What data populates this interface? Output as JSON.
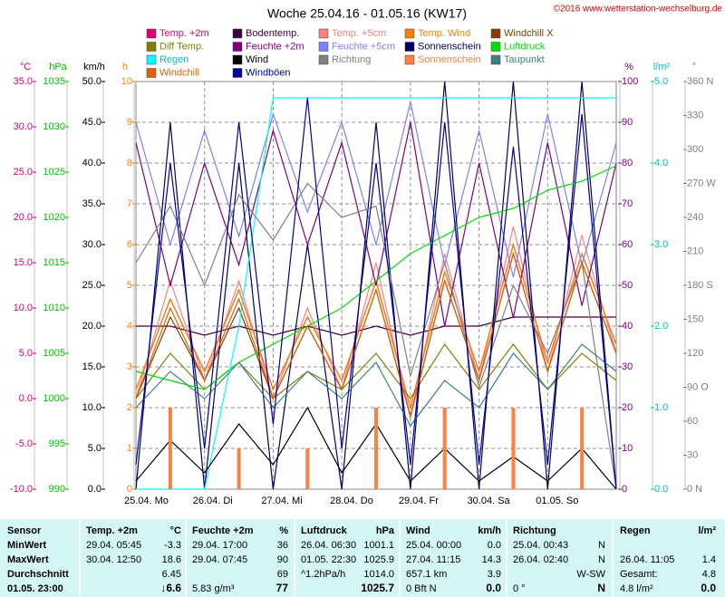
{
  "chart_data": {
    "type": "line",
    "title": "Woche 25.04.16 - 01.05.16 (KW17)",
    "copyright": "©2016 www.wetterstation-wechselburg.de",
    "grid": true,
    "xlim": [
      0,
      168
    ],
    "xticks": [
      {
        "value": 0,
        "label": "25.04.  Mo"
      },
      {
        "value": 24,
        "label": "26.04.  Di"
      },
      {
        "value": 48,
        "label": "27.04.  Mi"
      },
      {
        "value": 72,
        "label": "28.04.  Do"
      },
      {
        "value": 96,
        "label": "29.04.  Fr"
      },
      {
        "value": 120,
        "label": "30.04.  Sa"
      },
      {
        "value": 144,
        "label": "01.05.  So"
      }
    ],
    "x": [
      0,
      12,
      24,
      36,
      48,
      60,
      72,
      84,
      96,
      108,
      120,
      132,
      144,
      156,
      168
    ],
    "ylabel": "°C",
    "ycolor": "#e0006e",
    "ylim": [
      -10,
      35
    ],
    "yticks": [
      {
        "value": -10,
        "label": "-10.0"
      },
      {
        "value": -5,
        "label": "-5.0"
      },
      {
        "value": 0,
        "label": "0.0"
      },
      {
        "value": 5,
        "label": "5.0"
      },
      {
        "value": 10,
        "label": "10.0"
      },
      {
        "value": 15,
        "label": "15.0"
      },
      {
        "value": 20,
        "label": "20.0"
      },
      {
        "value": 25,
        "label": "25.0"
      },
      {
        "value": 30,
        "label": "30.0"
      },
      {
        "value": 35,
        "label": "35.0"
      }
    ],
    "y2label": "hPa",
    "y2color": "#00c000",
    "y2lim": [
      990,
      1035
    ],
    "y2ticks": [
      990,
      995,
      1000,
      1005,
      1010,
      1015,
      1020,
      1025,
      1030,
      1035
    ],
    "y3label": "km/h",
    "y3color": "#000000",
    "y3lim": [
      0,
      50
    ],
    "y3ticks": [
      {
        "value": 0,
        "label": "0.0"
      },
      {
        "value": 5,
        "label": "5.0"
      },
      {
        "value": 10,
        "label": "10.0"
      },
      {
        "value": 15,
        "label": "15.0"
      },
      {
        "value": 20,
        "label": "20.0"
      },
      {
        "value": 25,
        "label": "25.0"
      },
      {
        "value": 30,
        "label": "30.0"
      },
      {
        "value": 35,
        "label": "35.0"
      },
      {
        "value": 40,
        "label": "40.0"
      },
      {
        "value": 45,
        "label": "45.0"
      },
      {
        "value": 50,
        "label": "50.0"
      }
    ],
    "y4label": "h",
    "y4color": "#ff8000",
    "y4lim": [
      0,
      10
    ],
    "y4ticks": [
      0,
      1,
      2,
      3,
      4,
      5,
      6,
      7,
      8,
      9,
      10
    ],
    "y5label": "%",
    "y5color": "#800080",
    "y5lim": [
      0,
      100
    ],
    "y5ticks": [
      0,
      10,
      20,
      30,
      40,
      50,
      60,
      70,
      80,
      90,
      100
    ],
    "y6label": "l/m²",
    "y6color": "#00c0c0",
    "y6lim": [
      0,
      5
    ],
    "y6ticks": [
      {
        "value": 0,
        "label": "0.0"
      },
      {
        "value": 1,
        "label": "1.0"
      },
      {
        "value": 2,
        "label": "2.0"
      },
      {
        "value": 3,
        "label": "3.0"
      },
      {
        "value": 4,
        "label": "4.0"
      },
      {
        "value": 5,
        "label": "5.0"
      }
    ],
    "y7label": "°",
    "y7color": "#808080",
    "y7lim": [
      0,
      360
    ],
    "y7ticks": [
      {
        "value": 0,
        "label": "0 N"
      },
      30,
      60,
      {
        "value": 90,
        "label": "90 O"
      },
      120,
      150,
      {
        "value": 180,
        "label": "180 S"
      },
      210,
      240,
      {
        "value": 270,
        "label": "270 W"
      },
      300,
      330,
      {
        "value": 360,
        "label": "360 N"
      }
    ],
    "series": [
      {
        "name": "Temp. +2m",
        "color": "#e0006e",
        "axis": "y",
        "values": [
          1,
          11,
          3,
          12,
          1,
          9,
          2,
          13,
          -1,
          14,
          3,
          17,
          4,
          16,
          6
        ]
      },
      {
        "name": "Bodentemp.",
        "color": "#400040",
        "axis": "y",
        "values": [
          8,
          8,
          7,
          8,
          7,
          8,
          7,
          8,
          7,
          8,
          8,
          9,
          9,
          9,
          9
        ]
      },
      {
        "name": "Temp. +5cm",
        "color": "#ff8080",
        "axis": "y",
        "values": [
          0,
          13,
          2,
          13,
          0,
          10,
          1,
          15,
          -2,
          16,
          2,
          19,
          3,
          18,
          5
        ]
      },
      {
        "name": "Temp. Wind",
        "color": "#ff8000",
        "axis": "y",
        "values": [
          1,
          11,
          3,
          12,
          1,
          9,
          2,
          13,
          -1,
          14,
          3,
          17,
          4,
          16,
          6
        ]
      },
      {
        "name": "Windchill X",
        "color": "#804000",
        "axis": "y",
        "values": [
          0,
          9,
          2,
          10,
          0,
          8,
          1,
          12,
          -2,
          13,
          2,
          16,
          3,
          15,
          5
        ]
      },
      {
        "name": "Diff Temp.",
        "color": "#808000",
        "axis": "y",
        "values": [
          0,
          5,
          1,
          4,
          0,
          3,
          1,
          5,
          0,
          6,
          1,
          6,
          1,
          5,
          2
        ]
      },
      {
        "name": "Feuchte +2m",
        "color": "#800080",
        "axis": "y5",
        "values": [
          85,
          50,
          80,
          55,
          88,
          60,
          85,
          50,
          90,
          40,
          80,
          42,
          85,
          45,
          80
        ]
      },
      {
        "name": "Feuchte +5cm",
        "color": "#8080ff",
        "axis": "y5",
        "values": [
          90,
          60,
          88,
          62,
          92,
          68,
          90,
          60,
          95,
          55,
          88,
          52,
          92,
          55,
          85
        ]
      },
      {
        "name": "Sonnenschein",
        "color": "#000060",
        "axis": "y4",
        "values": [
          0,
          9,
          0,
          8,
          0,
          6,
          0,
          9,
          0,
          10,
          0,
          10,
          0,
          10,
          0
        ]
      },
      {
        "name": "Luftdruck",
        "color": "#00e000",
        "axis": "y2",
        "values": [
          1003,
          1002,
          1001,
          1004,
          1006,
          1008,
          1010,
          1013,
          1016,
          1018,
          1020,
          1021,
          1023,
          1024,
          1025.7
        ]
      },
      {
        "name": "Regen",
        "color": "#00ffff",
        "axis": "y6",
        "values": [
          0,
          0,
          0,
          2,
          4.8,
          4.8,
          4.8,
          4.8,
          4.8,
          4.8,
          4.8,
          4.8,
          4.8,
          4.8,
          4.8
        ]
      },
      {
        "name": "Wind",
        "color": "#000000",
        "axis": "y3",
        "values": [
          1,
          6,
          2,
          8,
          3,
          10,
          2,
          8,
          1,
          5,
          1,
          4,
          1,
          5,
          0
        ]
      },
      {
        "name": "Richtung",
        "color": "#808080",
        "axis": "y7",
        "values": [
          200,
          250,
          180,
          260,
          220,
          270,
          240,
          250,
          100,
          200,
          90,
          180,
          120,
          200,
          0
        ]
      },
      {
        "name": "Sonnenschein",
        "color": "#ff8040",
        "axis": "y4",
        "mark": "bar",
        "values": [
          0,
          2,
          0,
          1,
          0,
          1,
          0,
          2,
          0,
          2,
          0,
          2,
          0,
          2,
          0
        ]
      },
      {
        "name": "Taupunkt",
        "color": "#408080",
        "axis": "y",
        "values": [
          -1,
          3,
          0,
          4,
          -1,
          3,
          0,
          4,
          -3,
          2,
          -1,
          5,
          1,
          6,
          3
        ]
      },
      {
        "name": "Windchill",
        "color": "#e06000",
        "axis": "y",
        "values": [
          0,
          10,
          2,
          11,
          0,
          8,
          1,
          12,
          -2,
          13,
          2,
          16,
          3,
          15,
          5
        ]
      },
      {
        "name": "Windböen",
        "color": "#0000a0",
        "axis": "y3",
        "values": [
          3,
          40,
          5,
          45,
          8,
          48,
          5,
          40,
          3,
          45,
          3,
          42,
          3,
          46,
          0
        ]
      }
    ]
  },
  "table": {
    "rows": [
      [
        "Sensor",
        "Temp. +2m",
        "°C",
        "Feuchte +2m",
        "%",
        "Luftdruck",
        "hPa",
        "Wind",
        "km/h",
        "Richtung",
        null,
        "Regen",
        "l/m²"
      ],
      [
        "MinWert",
        "29.04.  05:45",
        "-3.3",
        "29.04.  17:00",
        "36",
        "26.04.  06:30",
        "1001.1",
        "25.04.  00:00",
        "0.0",
        "25.04.  00:43",
        "N",
        null,
        null
      ],
      [
        "MaxWert",
        "30.04.  12:50",
        "18.6",
        "29.04.  07:45",
        "90",
        "01.05.  22:30",
        "1025.9",
        "27.04.  11:15",
        "14.3",
        "26.04.  02:40",
        "N",
        "26.04.  11:05",
        "1.4"
      ],
      [
        "Durchschnitt",
        null,
        "6.45",
        null,
        "69",
        "^1.2hPa/h",
        "1014.0",
        "657.1 km",
        "3.9",
        null,
        "W-SW",
        "Gesamt:",
        "4.8"
      ],
      [
        "01.05. 23:00",
        null,
        "↓6.6",
        "5.83 g/m³",
        "77",
        null,
        "1025.7",
        "0 Bft N",
        "0.0",
        "0 °",
        "N",
        "4.8 l/m²",
        "0.0"
      ]
    ]
  }
}
